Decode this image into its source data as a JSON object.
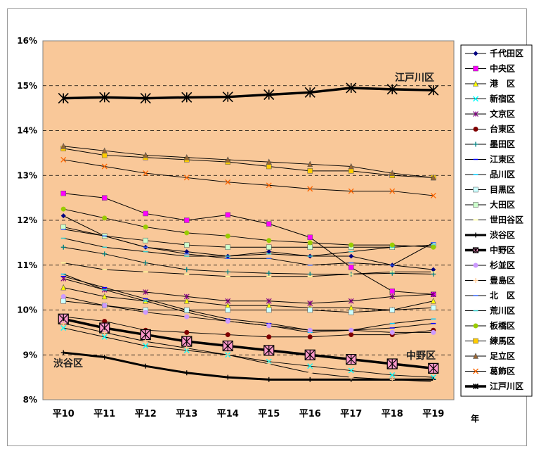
{
  "chart_data": {
    "type": "line",
    "categories": [
      "平10",
      "平11",
      "平12",
      "平13",
      "平14",
      "平15",
      "平16",
      "平17",
      "平18",
      "平19"
    ],
    "x_unit_label": "年",
    "ylim": [
      0.08,
      0.16
    ],
    "y_ticks": [
      "8%",
      "9%",
      "10%",
      "11%",
      "12%",
      "13%",
      "14%",
      "15%",
      "16%"
    ],
    "grid": "dashed-horizontal",
    "legend_position": "right",
    "plot_background": "#F9C899",
    "annotations": [
      "江戸川区",
      "渋谷区",
      "中野区"
    ],
    "series": [
      {
        "name": "千代田区",
        "color": "#000080",
        "marker": "diamond",
        "values": [
          12.1,
          11.65,
          11.4,
          11.3,
          11.2,
          11.3,
          11.2,
          11.2,
          11.0,
          10.9
        ]
      },
      {
        "name": "中央区",
        "color": "#FF00FF",
        "marker": "square",
        "values": [
          12.6,
          12.5,
          12.15,
          12.0,
          12.12,
          11.92,
          11.62,
          10.95,
          10.42,
          10.35
        ]
      },
      {
        "name": "港　区",
        "color": "#FFFF00",
        "marker": "triangle",
        "values": [
          10.5,
          10.3,
          10.2,
          10.2,
          10.1,
          10.1,
          10.05,
          10.05,
          10.0,
          10.2
        ]
      },
      {
        "name": "新宿区",
        "color": "#00FFFF",
        "marker": "x",
        "values": [
          9.6,
          9.4,
          9.2,
          9.1,
          9.0,
          8.85,
          8.75,
          8.65,
          8.55,
          8.5
        ]
      },
      {
        "name": "文京区",
        "color": "#800080",
        "marker": "star",
        "values": [
          10.7,
          10.45,
          10.4,
          10.3,
          10.2,
          10.2,
          10.15,
          10.2,
          10.3,
          10.35
        ]
      },
      {
        "name": "台東区",
        "color": "#800000",
        "marker": "circle",
        "values": [
          9.85,
          9.75,
          9.55,
          9.5,
          9.45,
          9.4,
          9.4,
          9.45,
          9.45,
          9.55
        ]
      },
      {
        "name": "墨田区",
        "color": "#008080",
        "marker": "plus",
        "values": [
          11.4,
          11.25,
          11.05,
          10.9,
          10.85,
          10.82,
          10.8,
          10.8,
          10.82,
          10.8
        ]
      },
      {
        "name": "江東区",
        "color": "#0000FF",
        "marker": "dash",
        "values": [
          10.75,
          10.5,
          10.25,
          10.0,
          9.8,
          9.7,
          9.55,
          9.55,
          9.6,
          9.7
        ]
      },
      {
        "name": "品川区",
        "color": "#00CCFF",
        "marker": "dash",
        "values": [
          10.8,
          10.45,
          10.2,
          9.95,
          9.75,
          9.65,
          9.5,
          9.55,
          9.7,
          9.8
        ]
      },
      {
        "name": "目黒区",
        "color": "#CCFFFF",
        "marker": "square",
        "values": [
          10.2,
          10.1,
          10.0,
          10.0,
          10.0,
          10.0,
          10.0,
          9.95,
          10.0,
          10.05
        ]
      },
      {
        "name": "大田区",
        "color": "#CCFFCC",
        "marker": "square",
        "values": [
          11.85,
          11.65,
          11.55,
          11.45,
          11.4,
          11.4,
          11.4,
          11.4,
          11.4,
          11.45
        ]
      },
      {
        "name": "世田谷区",
        "color": "#FFFF99",
        "marker": "dash",
        "values": [
          11.05,
          10.9,
          10.85,
          10.8,
          10.75,
          10.75,
          10.75,
          10.8,
          10.85,
          10.85
        ]
      },
      {
        "name": "渋谷区",
        "color": "#000000",
        "marker": "plus",
        "values": [
          9.05,
          8.95,
          8.75,
          8.6,
          8.5,
          8.45,
          8.45,
          8.45,
          8.45,
          8.45
        ]
      },
      {
        "name": "中野区",
        "color": "#000000",
        "marker": "boxstar",
        "values": [
          9.8,
          9.6,
          9.45,
          9.3,
          9.2,
          9.1,
          9.0,
          8.9,
          8.8,
          8.7
        ]
      },
      {
        "name": "杉並区",
        "color": "#CC99FF",
        "marker": "circle",
        "values": [
          10.3,
          10.1,
          9.95,
          9.85,
          9.75,
          9.65,
          9.55,
          9.55,
          9.5,
          9.5
        ]
      },
      {
        "name": "豊島区",
        "color": "#FFCC99",
        "marker": "plus",
        "values": [
          9.7,
          9.5,
          9.3,
          9.15,
          9.0,
          8.8,
          8.6,
          8.5,
          8.45,
          8.4
        ]
      },
      {
        "name": "北　区",
        "color": "#3366FF",
        "marker": "dash",
        "values": [
          11.8,
          11.65,
          11.4,
          11.25,
          11.15,
          11.15,
          11.0,
          11.05,
          11.0,
          11.5
        ]
      },
      {
        "name": "荒川区",
        "color": "#33CCCC",
        "marker": "dash",
        "values": [
          11.6,
          11.4,
          11.3,
          11.2,
          11.2,
          11.25,
          11.2,
          11.3,
          11.4,
          11.45
        ]
      },
      {
        "name": "板橋区",
        "color": "#99CC00",
        "marker": "circle",
        "values": [
          12.25,
          12.05,
          11.85,
          11.72,
          11.65,
          11.55,
          11.5,
          11.45,
          11.45,
          11.4
        ]
      },
      {
        "name": "練馬区",
        "color": "#FFCC00",
        "marker": "square",
        "values": [
          13.6,
          13.45,
          13.4,
          13.35,
          13.3,
          13.2,
          13.1,
          13.1,
          13.0,
          12.95
        ]
      },
      {
        "name": "足立区",
        "color": "#996633",
        "marker": "triangle",
        "values": [
          13.65,
          13.55,
          13.45,
          13.4,
          13.35,
          13.3,
          13.25,
          13.2,
          13.05,
          12.95
        ]
      },
      {
        "name": "葛飾区",
        "color": "#FF6600",
        "marker": "x",
        "values": [
          13.35,
          13.2,
          13.05,
          12.95,
          12.85,
          12.78,
          12.7,
          12.65,
          12.65,
          12.55
        ]
      },
      {
        "name": "江戸川区",
        "color": "#000000",
        "marker": "asterisk",
        "values": [
          14.72,
          14.74,
          14.72,
          14.74,
          14.75,
          14.8,
          14.85,
          14.95,
          14.92,
          14.9
        ]
      }
    ]
  }
}
